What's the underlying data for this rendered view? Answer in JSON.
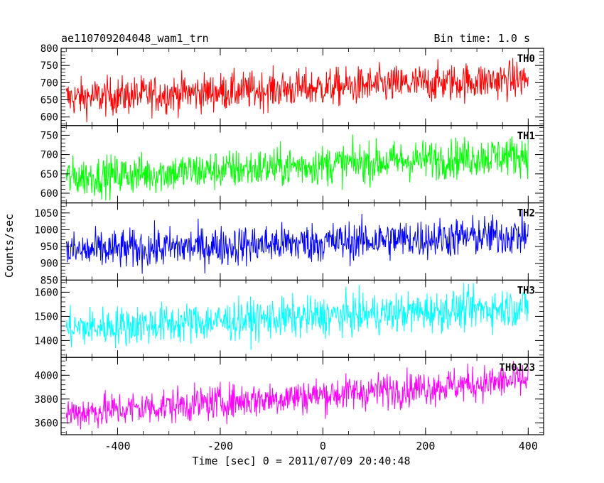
{
  "header": {
    "left_title": "ae110709204048_wam1_trn",
    "right_title": "Bin time: 1.0 s"
  },
  "chart_data": {
    "type": "line",
    "title": "ae110709204048_wam1_trn",
    "subtitle": "Bin time: 1.0 s",
    "xlabel": "Time [sec] 0 = 2011/07/09 20:40:48",
    "ylabel": "Counts/sec",
    "xlim": [
      -510,
      430
    ],
    "x_ticks": [
      -400,
      -200,
      0,
      200,
      400
    ],
    "x_range_data": [
      -500,
      400
    ],
    "grid": false,
    "panels": [
      {
        "name": "TH0",
        "color": "#ff0000",
        "ylim": [
          575,
          800
        ],
        "y_ticks": [
          600,
          650,
          700,
          750,
          800
        ],
        "trend_start": 655,
        "trend_end": 710,
        "noise": 28,
        "min": 578,
        "max": 800
      },
      {
        "name": "TH1",
        "color": "#00ff00",
        "ylim": [
          575,
          775
        ],
        "y_ticks": [
          600,
          650,
          700,
          750
        ],
        "trend_start": 640,
        "trend_end": 700,
        "noise": 26,
        "min": 580,
        "max": 770
      },
      {
        "name": "TH2",
        "color": "#0000ff",
        "ylim": [
          850,
          1080
        ],
        "y_ticks": [
          850,
          900,
          950,
          1000,
          1050
        ],
        "trend_start": 935,
        "trend_end": 985,
        "noise": 30,
        "min": 855,
        "max": 1078
      },
      {
        "name": "TH3",
        "color": "#00ffff",
        "ylim": [
          1330,
          1650
        ],
        "y_ticks": [
          1400,
          1500,
          1600
        ],
        "trend_start": 1450,
        "trend_end": 1540,
        "noise": 42,
        "min": 1340,
        "max": 1640
      },
      {
        "name": "TH0123",
        "color": "#ff00ff",
        "ylim": [
          3500,
          4150
        ],
        "y_ticks": [
          3600,
          3800,
          4000
        ],
        "trend_start": 3680,
        "trend_end": 3960,
        "noise": 75,
        "min": 3510,
        "max": 4120
      }
    ]
  }
}
